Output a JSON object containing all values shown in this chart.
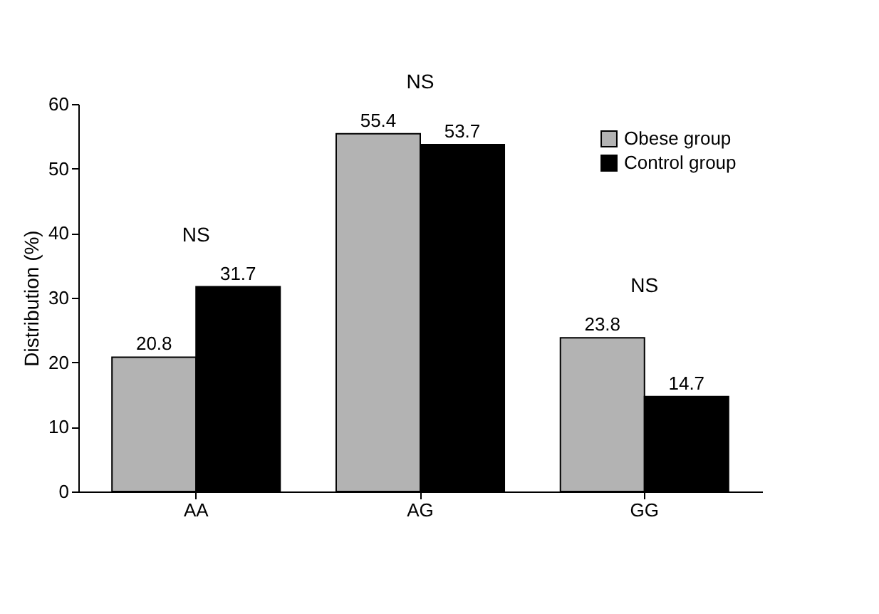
{
  "chart_data": {
    "type": "bar",
    "categories": [
      "AA",
      "AG",
      "GG"
    ],
    "series": [
      {
        "name": "Obese group",
        "color": "#b3b3b3",
        "values": [
          20.8,
          55.4,
          23.8
        ]
      },
      {
        "name": "Control group",
        "color": "#000000",
        "values": [
          31.7,
          53.7,
          14.7
        ]
      }
    ],
    "ylabel": "Distribution (%)",
    "ylim": [
      0,
      60
    ],
    "yticks": [
      0,
      10,
      20,
      30,
      40,
      50,
      60
    ],
    "data_labels": true,
    "grid": false,
    "legend": "top right",
    "annotations": [
      "NS",
      "NS",
      "NS"
    ]
  }
}
